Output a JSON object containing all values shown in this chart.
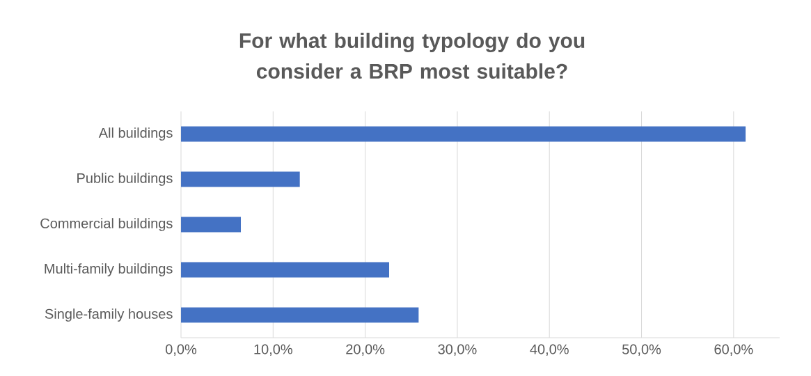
{
  "chart_data": {
    "type": "bar",
    "orientation": "horizontal",
    "title": "For what building typology do you consider a BRP most suitable?",
    "categories": [
      "All buildings",
      "Public buildings",
      "Commercial buildings",
      "Multi-family buildings",
      "Single-family houses"
    ],
    "values": [
      61.3,
      12.9,
      6.5,
      22.6,
      25.8
    ],
    "color": "#4472c4",
    "xlim": [
      0,
      65
    ],
    "xticks": [
      {
        "value": 0,
        "label": "0,0%"
      },
      {
        "value": 10,
        "label": "10,0%"
      },
      {
        "value": 20,
        "label": "20,0%"
      },
      {
        "value": 30,
        "label": "30,0%"
      },
      {
        "value": 40,
        "label": "40,0%"
      },
      {
        "value": 50,
        "label": "50,0%"
      },
      {
        "value": 60,
        "label": "60,0%"
      }
    ],
    "grid": "x"
  }
}
